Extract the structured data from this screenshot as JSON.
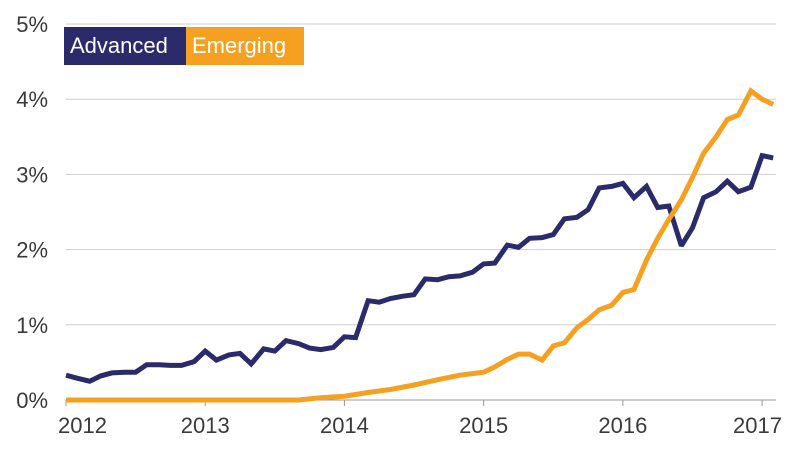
{
  "chart_data": {
    "type": "line",
    "x_ticks": [
      "2012",
      "2013",
      "2014",
      "2015",
      "2016",
      "2017"
    ],
    "y_ticks": [
      "0%",
      "1%",
      "2%",
      "3%",
      "4%",
      "5%"
    ],
    "ylim": [
      0,
      5
    ],
    "xlim": [
      2012,
      2017.1
    ],
    "grid": true,
    "legend_placement": "top-left",
    "series": [
      {
        "name": "Advanced",
        "color": "#2b2a6b",
        "x": [
          2012.0,
          2012.08,
          2012.17,
          2012.25,
          2012.33,
          2012.42,
          2012.5,
          2012.58,
          2012.67,
          2012.75,
          2012.83,
          2012.92,
          2013.0,
          2013.08,
          2013.17,
          2013.25,
          2013.33,
          2013.42,
          2013.5,
          2013.58,
          2013.67,
          2013.75,
          2013.83,
          2013.92,
          2014.0,
          2014.08,
          2014.17,
          2014.25,
          2014.33,
          2014.42,
          2014.5,
          2014.58,
          2014.67,
          2014.75,
          2014.83,
          2014.92,
          2015.0,
          2015.08,
          2015.17,
          2015.25,
          2015.33,
          2015.42,
          2015.5,
          2015.58,
          2015.67,
          2015.75,
          2015.83,
          2015.92,
          2016.0,
          2016.08,
          2016.17,
          2016.25,
          2016.33,
          2016.42,
          2016.5,
          2016.58,
          2016.67,
          2016.75,
          2016.83,
          2016.92,
          2017.0,
          2017.08
        ],
        "y": [
          0.33,
          0.29,
          0.25,
          0.32,
          0.36,
          0.37,
          0.37,
          0.47,
          0.47,
          0.46,
          0.46,
          0.51,
          0.65,
          0.53,
          0.6,
          0.62,
          0.48,
          0.68,
          0.65,
          0.79,
          0.75,
          0.69,
          0.67,
          0.7,
          0.84,
          0.83,
          1.32,
          1.3,
          1.35,
          1.38,
          1.4,
          1.61,
          1.6,
          1.64,
          1.65,
          1.7,
          1.81,
          1.82,
          2.06,
          2.03,
          2.15,
          2.16,
          2.2,
          2.41,
          2.43,
          2.53,
          2.82,
          2.84,
          2.88,
          2.69,
          2.84,
          2.56,
          2.58,
          2.05,
          2.29,
          2.69,
          2.77,
          2.91,
          2.77,
          2.83,
          3.25,
          3.22
        ]
      },
      {
        "name": "Emerging",
        "color": "#f5a020",
        "x": [
          2012.0,
          2012.5,
          2013.0,
          2013.5,
          2013.67,
          2013.83,
          2014.0,
          2014.17,
          2014.33,
          2014.5,
          2014.67,
          2014.83,
          2015.0,
          2015.08,
          2015.17,
          2015.25,
          2015.33,
          2015.42,
          2015.5,
          2015.58,
          2015.67,
          2015.75,
          2015.83,
          2015.92,
          2016.0,
          2016.08,
          2016.17,
          2016.25,
          2016.33,
          2016.42,
          2016.5,
          2016.58,
          2016.67,
          2016.75,
          2016.83,
          2016.92,
          2017.0,
          2017.08
        ],
        "y": [
          0.0,
          0.0,
          0.0,
          0.0,
          0.0,
          0.03,
          0.05,
          0.1,
          0.14,
          0.2,
          0.27,
          0.33,
          0.37,
          0.44,
          0.54,
          0.61,
          0.61,
          0.53,
          0.72,
          0.76,
          0.96,
          1.07,
          1.2,
          1.26,
          1.43,
          1.47,
          1.86,
          2.15,
          2.4,
          2.66,
          2.96,
          3.28,
          3.5,
          3.73,
          3.79,
          4.11,
          4.0,
          3.93
        ]
      }
    ]
  }
}
